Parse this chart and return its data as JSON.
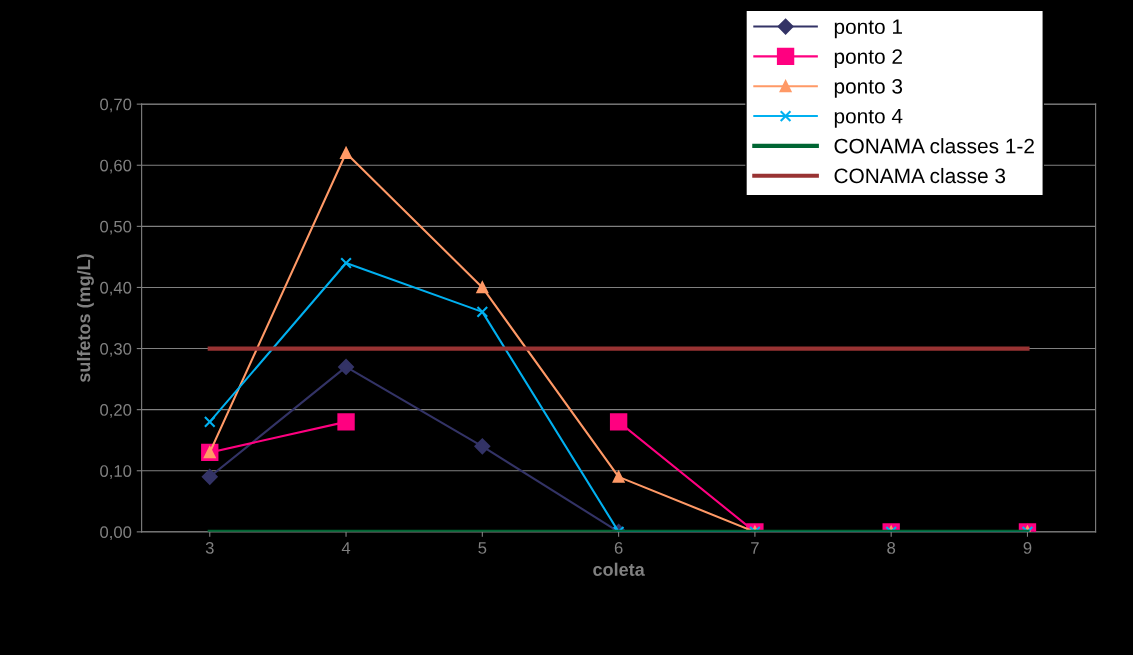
{
  "chart_data": {
    "type": "line",
    "xlabel": "coleta",
    "ylabel": "sulfetos (mg/L)",
    "categories": [
      "3",
      "4",
      "5",
      "6",
      "7",
      "8",
      "9"
    ],
    "series": [
      {
        "name": "ponto 1",
        "color": "#333366",
        "marker": "diamond",
        "values": [
          0.09,
          0.27,
          0.14,
          0,
          0,
          0,
          0
        ]
      },
      {
        "name": "ponto 2",
        "color": "#ff0080",
        "marker": "square",
        "values": [
          0.13,
          0.18,
          null,
          0.18,
          0,
          0,
          0
        ]
      },
      {
        "name": "ponto 3",
        "color": "#ff9966",
        "marker": "triangle",
        "values": [
          0.13,
          0.62,
          0.4,
          0.09,
          0,
          0,
          0
        ]
      },
      {
        "name": "ponto 4",
        "color": "#00b0f0",
        "marker": "cross",
        "values": [
          0.18,
          0.44,
          0.36,
          0,
          0,
          0,
          0
        ]
      },
      {
        "name": "CONAMA classes 1-2",
        "color": "#006633",
        "marker": "none",
        "values": [
          0,
          0,
          0,
          0,
          0,
          0,
          0
        ]
      },
      {
        "name": "CONAMA classe 3",
        "color": "#993333",
        "marker": "none",
        "values": [
          0.3,
          0.3,
          0.3,
          0.3,
          0.3,
          0.3,
          0.3
        ]
      }
    ],
    "ylim": [
      0,
      0.7
    ],
    "yticks": [
      {
        "value": 0,
        "label": "0,00"
      },
      {
        "value": 0.1,
        "label": "0,10"
      },
      {
        "value": 0.2,
        "label": "0,20"
      },
      {
        "value": 0.3,
        "label": "0,30"
      },
      {
        "value": 0.4,
        "label": "0,40"
      },
      {
        "value": 0.5,
        "label": "0,50"
      },
      {
        "value": 0.6,
        "label": "0,60"
      },
      {
        "value": 0.7,
        "label": "0,70"
      }
    ],
    "grid": "y",
    "legend": "top right",
    "line_style": "solid"
  }
}
